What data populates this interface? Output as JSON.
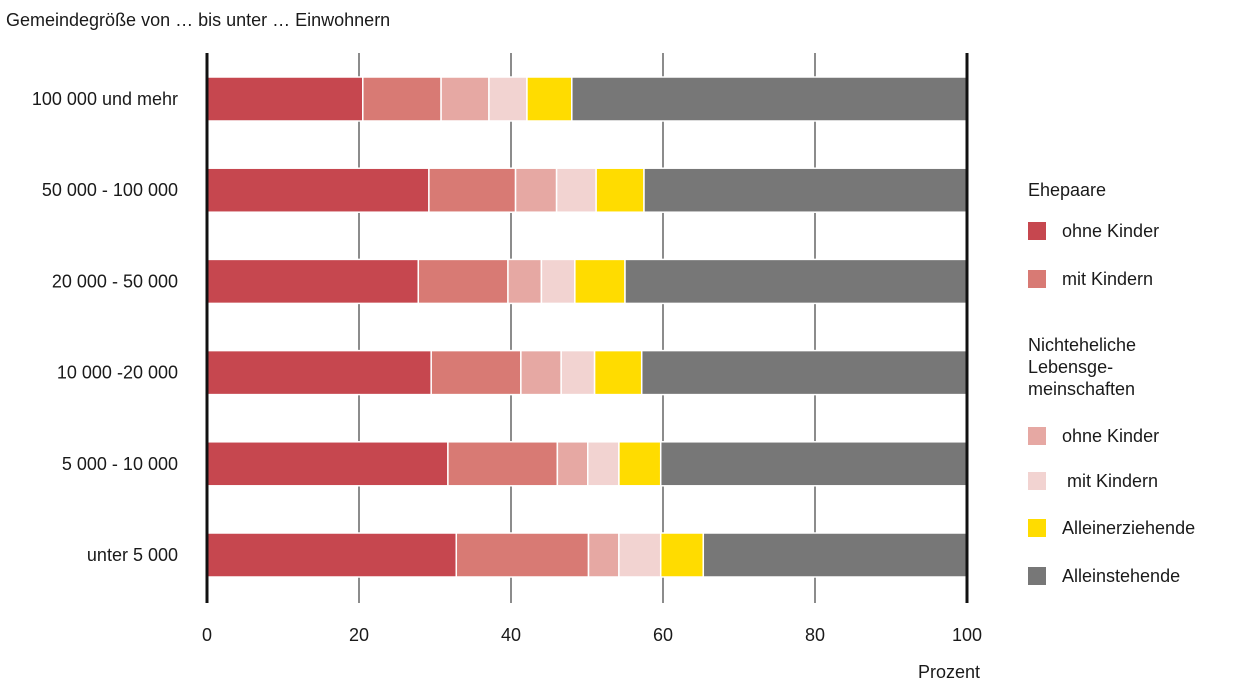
{
  "chart_data": {
    "type": "bar",
    "orientation": "horizontal",
    "stacked": true,
    "title": "Gemeindegröße von … bis unter … Einwohnern",
    "xlabel": "Prozent",
    "xlim": [
      0,
      100
    ],
    "xticks": [
      "0",
      "20",
      "40",
      "60",
      "80",
      "100"
    ],
    "grid": true,
    "legend_position": "right",
    "categories": [
      "100 000 und mehr",
      "50 000 - 100 000",
      "20 000 - 50 000",
      "10 000 -20 000",
      "5 000 - 10 000",
      "unter 5 000"
    ],
    "series": [
      {
        "group": "Ehepaare",
        "name": "ohne Kinder",
        "color": "#c6474f",
        "values": [
          20.5,
          29.2,
          27.8,
          29.5,
          31.7,
          32.8
        ]
      },
      {
        "group": "Ehepaare",
        "name": "mit Kindern",
        "color": "#d87a74",
        "values": [
          10.3,
          11.4,
          11.8,
          11.8,
          14.4,
          17.4
        ]
      },
      {
        "group": "Nichteheliche Lebensgemeinschaften",
        "name": "ohne Kinder",
        "color": "#e6a8a3",
        "values": [
          6.3,
          5.4,
          4.4,
          5.3,
          4.0,
          4.0
        ]
      },
      {
        "group": "Nichteheliche Lebensgemeinschaften",
        "name": "mit Kindern",
        "color": "#f2d3d1",
        "values": [
          5.0,
          5.2,
          4.4,
          4.4,
          4.1,
          5.5
        ]
      },
      {
        "group": "",
        "name": "Alleinerziehende",
        "color": "#ffdc00",
        "values": [
          5.9,
          6.3,
          6.6,
          6.2,
          5.5,
          5.6
        ]
      },
      {
        "group": "",
        "name": "Alleinstehende",
        "color": "#777777",
        "values": [
          52.0,
          42.5,
          45.0,
          42.8,
          40.3,
          34.7
        ]
      }
    ]
  },
  "legend": {
    "heading_1": "Ehepaare",
    "heading_2": "Nichteheliche\nLebensge-\nmeinschaften",
    "items": [
      {
        "label": "ohne Kinder",
        "color": "#c6474f"
      },
      {
        "label": "mit Kindern",
        "color": "#d87a74"
      },
      {
        "label": "ohne Kinder",
        "color": "#e6a8a3"
      },
      {
        "label": " mit Kindern",
        "color": "#f2d3d1"
      },
      {
        "label": "Alleinerziehende",
        "color": "#ffdc00"
      },
      {
        "label": "Alleinstehende",
        "color": "#777777"
      }
    ]
  }
}
